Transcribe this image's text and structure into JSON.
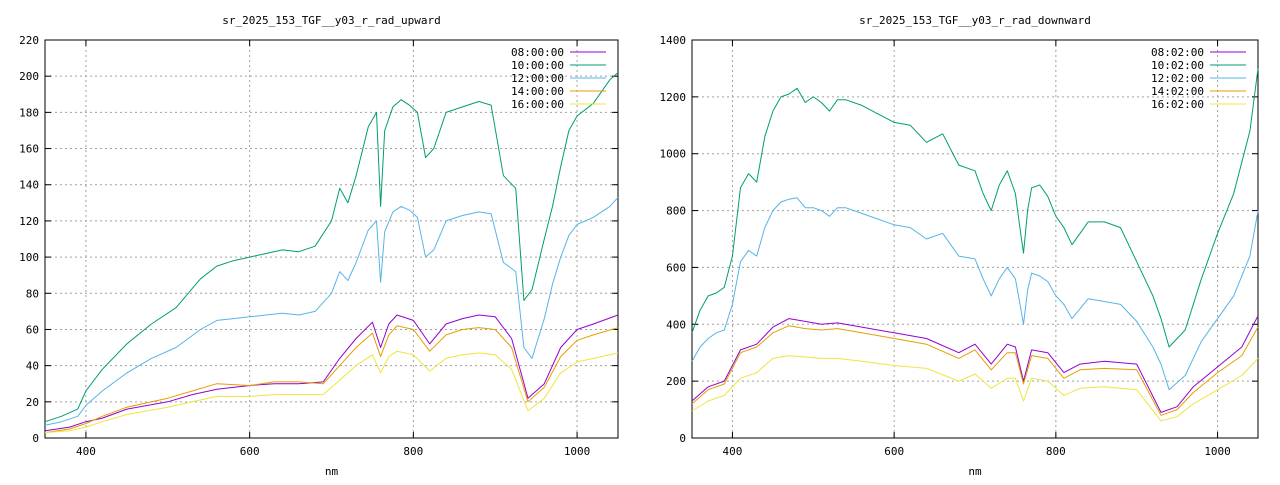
{
  "chart_data": [
    {
      "type": "line",
      "title": "sr_2025_153_TGF__y03_r_rad_upward",
      "xlabel": "nm",
      "ylabel": "",
      "xlim": [
        350,
        1050
      ],
      "ylim": [
        0,
        220
      ],
      "xticks": [
        400,
        600,
        800,
        1000
      ],
      "yticks": [
        0,
        20,
        40,
        60,
        80,
        100,
        120,
        140,
        160,
        180,
        200,
        220
      ],
      "grid": true,
      "legend": "top-right",
      "series": [
        {
          "name": "08:00:00",
          "color": "#9400d3",
          "x": [
            350,
            380,
            400,
            420,
            450,
            500,
            530,
            560,
            600,
            630,
            660,
            690,
            710,
            730,
            750,
            760,
            770,
            780,
            800,
            820,
            840,
            860,
            880,
            900,
            920,
            940,
            960,
            980,
            1000,
            1020,
            1050
          ],
          "y": [
            4,
            6,
            9,
            11,
            16,
            20,
            24,
            27,
            29,
            30,
            30,
            31,
            44,
            55,
            64,
            50,
            63,
            68,
            65,
            52,
            63,
            66,
            68,
            67,
            55,
            22,
            30,
            50,
            60,
            63,
            68
          ]
        },
        {
          "name": "10:00:00",
          "color": "#009e73",
          "x": [
            350,
            370,
            390,
            400,
            420,
            450,
            480,
            510,
            540,
            560,
            580,
            600,
            620,
            640,
            660,
            680,
            700,
            710,
            720,
            730,
            745,
            755,
            760,
            765,
            775,
            785,
            795,
            805,
            815,
            825,
            840,
            860,
            880,
            895,
            910,
            925,
            935,
            945,
            960,
            970,
            980,
            990,
            1000,
            1020,
            1040,
            1050
          ],
          "y": [
            9,
            12,
            16,
            26,
            38,
            52,
            63,
            72,
            88,
            95,
            98,
            100,
            102,
            104,
            103,
            106,
            120,
            138,
            130,
            145,
            172,
            180,
            128,
            170,
            183,
            187,
            184,
            180,
            155,
            160,
            180,
            183,
            186,
            184,
            145,
            138,
            76,
            82,
            110,
            128,
            150,
            170,
            178,
            185,
            198,
            202
          ]
        },
        {
          "name": "12:00:00",
          "color": "#56b4e9",
          "x": [
            350,
            370,
            390,
            400,
            420,
            450,
            480,
            510,
            540,
            560,
            580,
            600,
            620,
            640,
            660,
            680,
            700,
            710,
            720,
            730,
            745,
            755,
            760,
            765,
            775,
            785,
            795,
            805,
            815,
            825,
            840,
            860,
            880,
            895,
            910,
            925,
            935,
            945,
            960,
            970,
            980,
            990,
            1000,
            1020,
            1040,
            1050
          ],
          "y": [
            7,
            9,
            12,
            18,
            26,
            36,
            44,
            50,
            60,
            65,
            66,
            67,
            68,
            69,
            68,
            70,
            80,
            92,
            87,
            97,
            115,
            120,
            86,
            114,
            125,
            128,
            126,
            122,
            100,
            104,
            120,
            123,
            125,
            124,
            97,
            92,
            50,
            44,
            66,
            85,
            100,
            112,
            118,
            122,
            128,
            133
          ]
        },
        {
          "name": "14:00:00",
          "color": "#e69f00",
          "x": [
            350,
            380,
            400,
            420,
            450,
            500,
            530,
            560,
            600,
            630,
            660,
            690,
            710,
            730,
            750,
            760,
            770,
            780,
            800,
            820,
            840,
            860,
            880,
            900,
            920,
            940,
            960,
            980,
            1000,
            1020,
            1050
          ],
          "y": [
            3,
            5,
            8,
            12,
            17,
            22,
            26,
            30,
            29,
            31,
            31,
            30,
            40,
            50,
            58,
            45,
            57,
            62,
            60,
            48,
            57,
            60,
            61,
            60,
            50,
            20,
            28,
            45,
            54,
            57,
            61
          ]
        },
        {
          "name": "16:00:00",
          "color": "#f0e442",
          "x": [
            350,
            380,
            400,
            420,
            450,
            500,
            530,
            560,
            600,
            630,
            660,
            690,
            710,
            730,
            750,
            760,
            770,
            780,
            800,
            820,
            840,
            860,
            880,
            900,
            920,
            940,
            960,
            980,
            1000,
            1020,
            1050
          ],
          "y": [
            3,
            4,
            6,
            9,
            13,
            17,
            20,
            23,
            23,
            24,
            24,
            24,
            32,
            40,
            46,
            36,
            45,
            48,
            46,
            37,
            44,
            46,
            47,
            46,
            38,
            15,
            22,
            36,
            42,
            44,
            47
          ]
        }
      ]
    },
    {
      "type": "line",
      "title": "sr_2025_153_TGF__y03_r_rad_downward",
      "xlabel": "nm",
      "ylabel": "",
      "xlim": [
        350,
        1050
      ],
      "ylim": [
        0,
        1400
      ],
      "xticks": [
        400,
        600,
        800,
        1000
      ],
      "yticks": [
        0,
        200,
        400,
        600,
        800,
        1000,
        1200,
        1400
      ],
      "grid": true,
      "legend": "top-right",
      "series": [
        {
          "name": "08:02:00",
          "color": "#9400d3",
          "x": [
            350,
            370,
            390,
            410,
            430,
            450,
            470,
            490,
            510,
            530,
            560,
            600,
            640,
            680,
            700,
            720,
            740,
            750,
            760,
            770,
            790,
            810,
            830,
            860,
            900,
            930,
            950,
            970,
            1000,
            1030,
            1050
          ],
          "y": [
            130,
            180,
            200,
            310,
            330,
            390,
            420,
            410,
            400,
            405,
            390,
            370,
            350,
            300,
            330,
            260,
            330,
            320,
            200,
            310,
            300,
            230,
            260,
            270,
            260,
            90,
            110,
            180,
            250,
            320,
            430
          ]
        },
        {
          "name": "10:02:00",
          "color": "#009e73",
          "x": [
            350,
            360,
            370,
            380,
            390,
            400,
            410,
            420,
            430,
            440,
            450,
            460,
            470,
            480,
            490,
            500,
            510,
            520,
            530,
            540,
            560,
            580,
            600,
            620,
            640,
            660,
            680,
            700,
            710,
            720,
            730,
            740,
            750,
            755,
            760,
            765,
            770,
            780,
            790,
            800,
            810,
            820,
            840,
            860,
            880,
            900,
            920,
            930,
            940,
            960,
            980,
            1000,
            1020,
            1040,
            1050
          ],
          "y": [
            370,
            450,
            500,
            510,
            530,
            640,
            880,
            930,
            900,
            1060,
            1150,
            1200,
            1210,
            1230,
            1180,
            1200,
            1180,
            1150,
            1190,
            1190,
            1170,
            1140,
            1110,
            1100,
            1040,
            1070,
            960,
            940,
            860,
            800,
            890,
            940,
            860,
            750,
            650,
            800,
            880,
            890,
            850,
            780,
            740,
            680,
            760,
            760,
            740,
            620,
            500,
            420,
            320,
            380,
            560,
            720,
            860,
            1080,
            1300
          ]
        },
        {
          "name": "12:02:00",
          "color": "#56b4e9",
          "x": [
            350,
            360,
            370,
            380,
            390,
            400,
            410,
            420,
            430,
            440,
            450,
            460,
            470,
            480,
            490,
            500,
            510,
            520,
            530,
            540,
            560,
            580,
            600,
            620,
            640,
            660,
            680,
            700,
            710,
            720,
            730,
            740,
            750,
            755,
            760,
            765,
            770,
            780,
            790,
            800,
            810,
            820,
            840,
            860,
            880,
            900,
            920,
            930,
            940,
            960,
            980,
            1000,
            1020,
            1040,
            1050
          ],
          "y": [
            270,
            320,
            350,
            370,
            380,
            470,
            620,
            660,
            640,
            740,
            800,
            830,
            840,
            845,
            810,
            810,
            800,
            780,
            810,
            810,
            790,
            770,
            750,
            740,
            700,
            720,
            640,
            630,
            560,
            500,
            560,
            600,
            560,
            480,
            400,
            520,
            580,
            570,
            550,
            500,
            470,
            420,
            490,
            480,
            470,
            410,
            320,
            260,
            170,
            220,
            340,
            420,
            500,
            640,
            800
          ]
        },
        {
          "name": "14:02:00",
          "color": "#e69f00",
          "x": [
            350,
            370,
            390,
            410,
            430,
            450,
            470,
            490,
            510,
            530,
            560,
            600,
            640,
            680,
            700,
            720,
            740,
            750,
            760,
            770,
            790,
            810,
            830,
            860,
            900,
            930,
            950,
            970,
            1000,
            1030,
            1050
          ],
          "y": [
            120,
            170,
            190,
            300,
            320,
            370,
            395,
            385,
            380,
            385,
            370,
            350,
            330,
            280,
            310,
            240,
            300,
            300,
            190,
            290,
            280,
            210,
            240,
            245,
            240,
            80,
            100,
            160,
            230,
            290,
            390
          ]
        },
        {
          "name": "16:02:00",
          "color": "#f0e442",
          "x": [
            350,
            370,
            390,
            410,
            430,
            450,
            470,
            490,
            510,
            530,
            560,
            600,
            640,
            680,
            700,
            720,
            740,
            750,
            760,
            770,
            790,
            810,
            830,
            860,
            900,
            930,
            950,
            970,
            1000,
            1030,
            1050
          ],
          "y": [
            95,
            130,
            150,
            210,
            230,
            280,
            290,
            285,
            280,
            280,
            270,
            255,
            245,
            200,
            225,
            175,
            210,
            210,
            130,
            210,
            200,
            150,
            175,
            180,
            170,
            60,
            75,
            120,
            170,
            220,
            280
          ]
        }
      ]
    }
  ]
}
